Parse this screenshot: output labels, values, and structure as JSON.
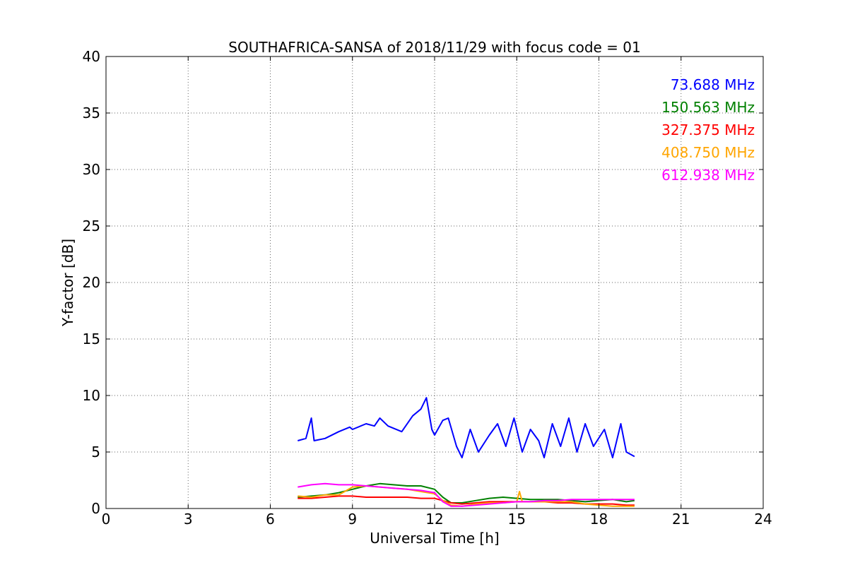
{
  "chart_data": {
    "type": "line",
    "title": "SOUTHAFRICA-SANSA of 2018/11/29 with focus code = 01",
    "xlabel": "Universal Time [h]",
    "ylabel": "Y-factor [dB]",
    "xlim": [
      0,
      24
    ],
    "ylim": [
      0,
      40
    ],
    "xticks": [
      0,
      3,
      6,
      9,
      12,
      15,
      18,
      21,
      24
    ],
    "yticks": [
      0,
      5,
      10,
      15,
      20,
      25,
      30,
      35,
      40
    ],
    "grid": true,
    "legend_position": "top-right",
    "series": [
      {
        "name": "73.688 MHz",
        "color": "#0000ff",
        "x": [
          7.0,
          7.3,
          7.5,
          7.6,
          8.0,
          8.5,
          8.9,
          9.0,
          9.5,
          9.8,
          10.0,
          10.3,
          10.8,
          11.2,
          11.5,
          11.7,
          11.9,
          12.0,
          12.3,
          12.5,
          12.8,
          13.0,
          13.3,
          13.6,
          14.0,
          14.3,
          14.6,
          14.9,
          15.2,
          15.5,
          15.8,
          16.0,
          16.3,
          16.6,
          16.9,
          17.2,
          17.5,
          17.8,
          18.2,
          18.5,
          18.8,
          19.0,
          19.3
        ],
        "y": [
          6.0,
          6.2,
          8.0,
          6.0,
          6.2,
          6.8,
          7.2,
          7.0,
          7.5,
          7.3,
          8.0,
          7.3,
          6.8,
          8.2,
          8.8,
          9.8,
          7.0,
          6.5,
          7.8,
          8.0,
          5.5,
          4.5,
          7.0,
          5.0,
          6.5,
          7.5,
          5.5,
          8.0,
          5.0,
          7.0,
          6.0,
          4.5,
          7.5,
          5.5,
          8.0,
          5.0,
          7.5,
          5.5,
          7.0,
          4.5,
          7.5,
          5.0,
          4.6
        ]
      },
      {
        "name": "150.563 MHz",
        "color": "#008000",
        "x": [
          7.0,
          7.5,
          8.0,
          8.5,
          9.0,
          9.5,
          10.0,
          10.5,
          11.0,
          11.5,
          12.0,
          12.3,
          12.6,
          13.0,
          13.5,
          14.0,
          14.5,
          15.0,
          15.5,
          16.0,
          16.5,
          17.0,
          17.5,
          18.0,
          18.5,
          19.0,
          19.3
        ],
        "y": [
          1.0,
          1.1,
          1.2,
          1.4,
          1.7,
          2.0,
          2.2,
          2.1,
          2.0,
          2.0,
          1.7,
          1.0,
          0.5,
          0.5,
          0.7,
          0.9,
          1.0,
          0.9,
          0.8,
          0.8,
          0.8,
          0.7,
          0.6,
          0.7,
          0.8,
          0.6,
          0.7
        ]
      },
      {
        "name": "327.375 MHz",
        "color": "#ff0000",
        "x": [
          7.0,
          7.5,
          8.0,
          8.5,
          9.0,
          9.5,
          10.0,
          10.5,
          11.0,
          11.5,
          12.0,
          12.3,
          12.6,
          13.0,
          13.5,
          14.0,
          14.5,
          15.0,
          15.5,
          16.0,
          16.5,
          17.0,
          17.5,
          18.0,
          18.5,
          19.0,
          19.3
        ],
        "y": [
          0.9,
          0.9,
          1.0,
          1.1,
          1.1,
          1.0,
          1.0,
          1.0,
          1.0,
          0.9,
          0.9,
          0.7,
          0.5,
          0.4,
          0.5,
          0.6,
          0.6,
          0.6,
          0.6,
          0.6,
          0.5,
          0.5,
          0.4,
          0.4,
          0.4,
          0.3,
          0.3
        ]
      },
      {
        "name": "408.750 MHz",
        "color": "#ffa500",
        "x": [
          7.0,
          7.5,
          8.0,
          8.5,
          9.0,
          9.5,
          10.0,
          10.5,
          11.0,
          11.5,
          12.0,
          12.3,
          12.6,
          13.0,
          13.5,
          14.0,
          14.5,
          15.0,
          15.1,
          15.2,
          15.5,
          16.0,
          16.5,
          17.0,
          17.5,
          18.0,
          18.5,
          19.0,
          19.3
        ],
        "y": [
          1.1,
          1.0,
          1.2,
          1.2,
          1.9,
          2.0,
          1.9,
          1.8,
          1.7,
          1.5,
          1.3,
          0.7,
          0.3,
          0.2,
          0.4,
          0.5,
          0.5,
          0.6,
          1.5,
          0.6,
          0.6,
          0.6,
          0.6,
          0.6,
          0.4,
          0.3,
          0.2,
          0.2,
          0.2
        ]
      },
      {
        "name": "612.938 MHz",
        "color": "#ff00ff",
        "x": [
          7.0,
          7.5,
          8.0,
          8.5,
          9.0,
          9.5,
          10.0,
          10.5,
          11.0,
          11.5,
          12.0,
          12.3,
          12.6,
          13.0,
          13.5,
          14.0,
          14.5,
          15.0,
          15.5,
          16.0,
          16.5,
          17.0,
          17.5,
          18.0,
          18.5,
          19.0,
          19.3
        ],
        "y": [
          1.9,
          2.1,
          2.2,
          2.1,
          2.1,
          2.0,
          1.9,
          1.8,
          1.7,
          1.6,
          1.4,
          0.6,
          0.2,
          0.2,
          0.3,
          0.4,
          0.5,
          0.6,
          0.6,
          0.7,
          0.7,
          0.8,
          0.8,
          0.8,
          0.8,
          0.8,
          0.8
        ]
      }
    ]
  }
}
